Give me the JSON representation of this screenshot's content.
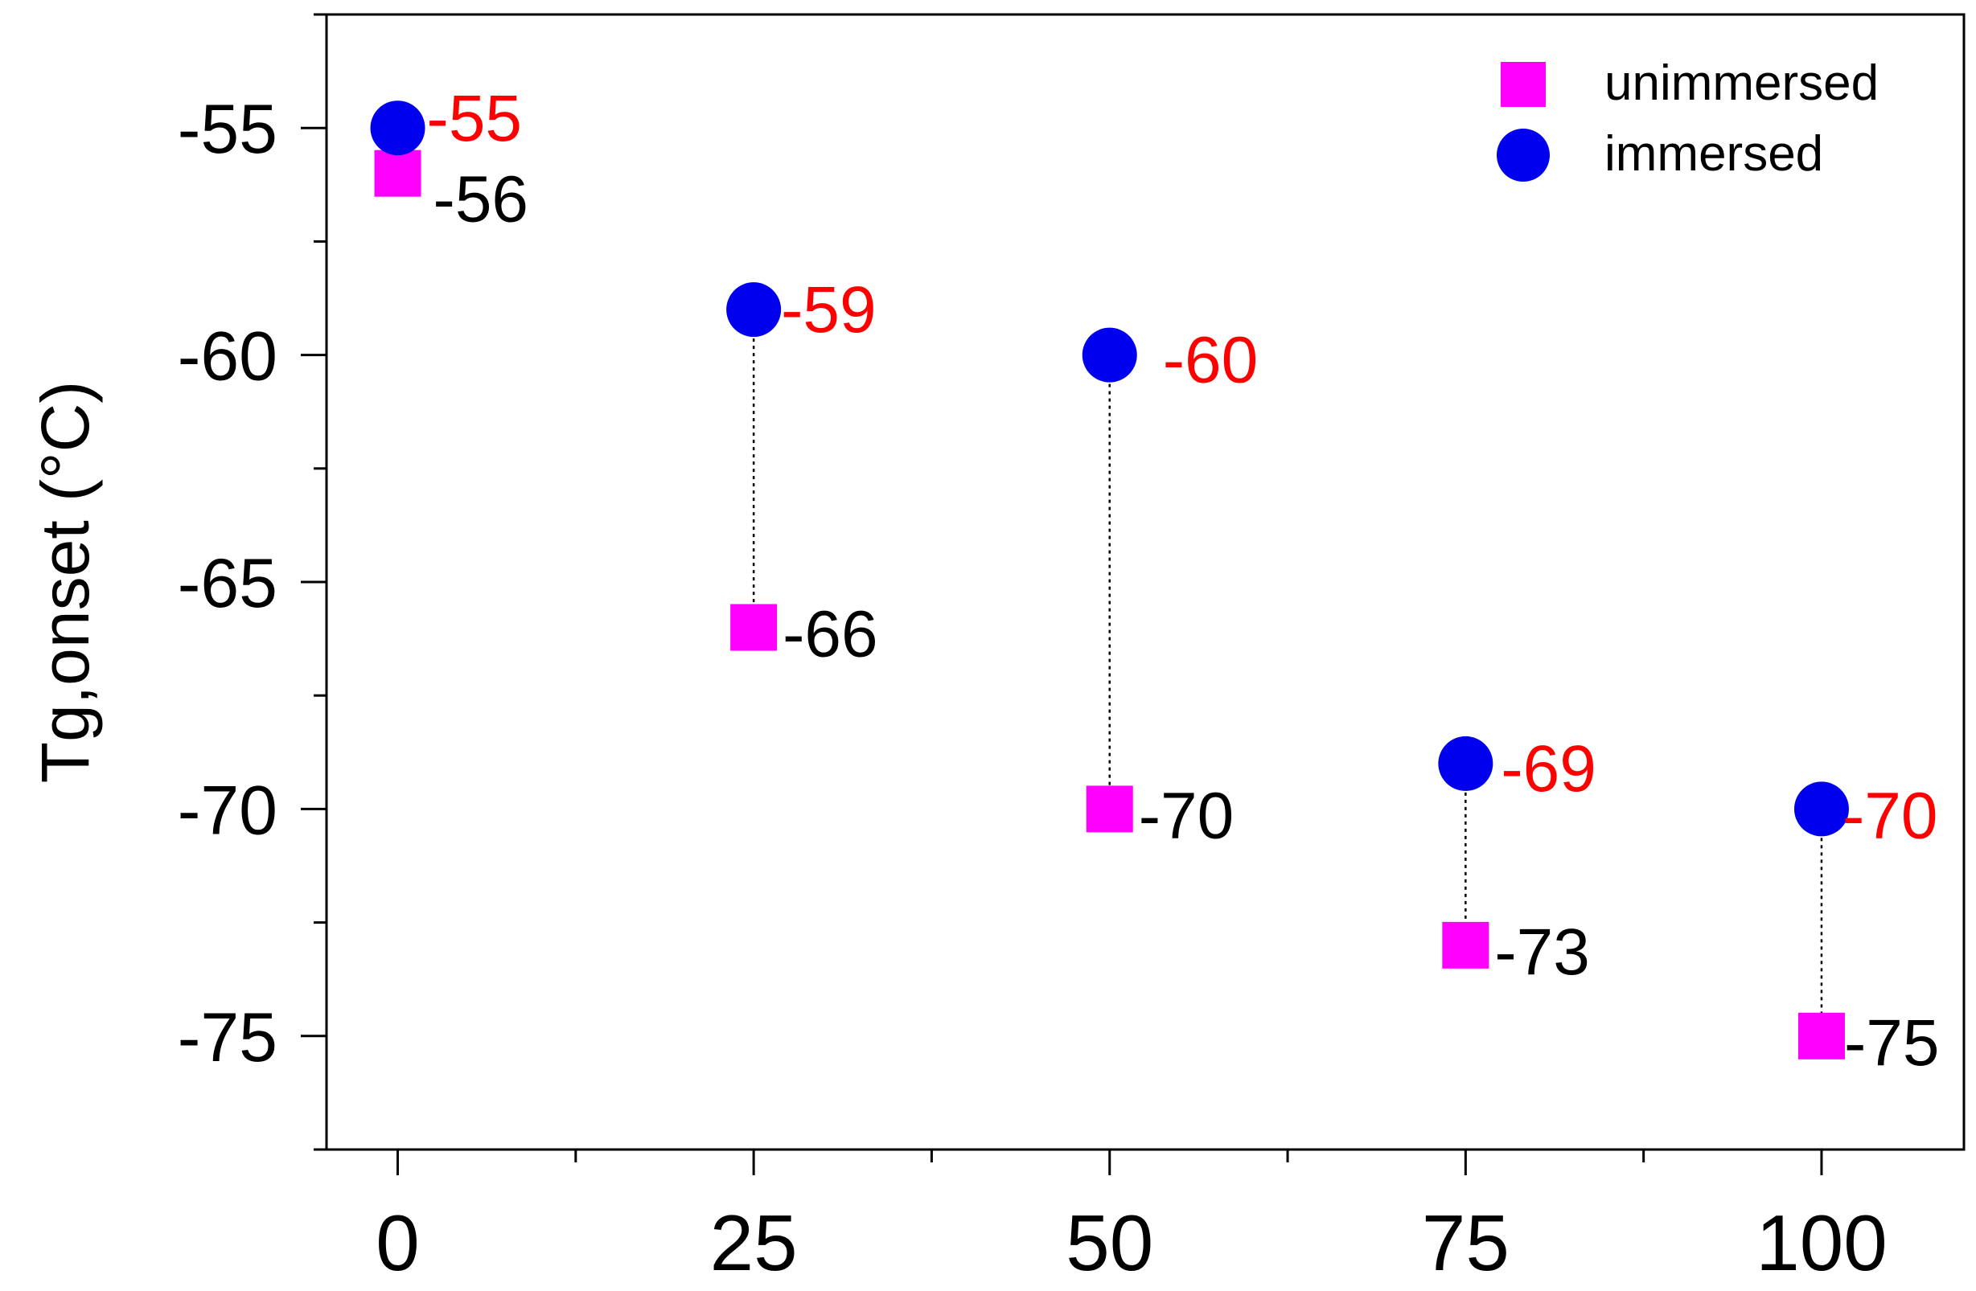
{
  "chart_data": {
    "type": "scatter",
    "ylabel": "Tg,onset (°C)",
    "xlabel": "",
    "xlim": [
      -5,
      110
    ],
    "ylim": [
      -77.5,
      -52.5
    ],
    "x_ticks": [
      0,
      25,
      50,
      75,
      100
    ],
    "x_tick_labels": [
      "0",
      "25",
      "50",
      "75",
      "100"
    ],
    "y_ticks": [
      -55,
      -60,
      -65,
      -70,
      -75
    ],
    "y_tick_labels": [
      "-55",
      "-60",
      "-65",
      "-70",
      "-75"
    ],
    "grid": false,
    "legend_position": "top-right",
    "x": [
      0,
      25,
      50,
      75,
      100
    ],
    "series": [
      {
        "name": "unimmersed",
        "marker": "square",
        "color": "#ff00ff",
        "label_color": "#000000",
        "values": [
          -56,
          -66,
          -70,
          -73,
          -75
        ],
        "labels": [
          "-56",
          "-66",
          "-70",
          "-73",
          "-75"
        ]
      },
      {
        "name": "immersed",
        "marker": "circle",
        "color": "#0000ee",
        "label_color": "#ff0000",
        "values": [
          -55,
          -59,
          -60,
          -69,
          -70
        ],
        "labels": [
          "-55",
          "-59",
          "-60",
          "-69",
          "-70"
        ]
      }
    ],
    "connector_style": "dotted"
  }
}
